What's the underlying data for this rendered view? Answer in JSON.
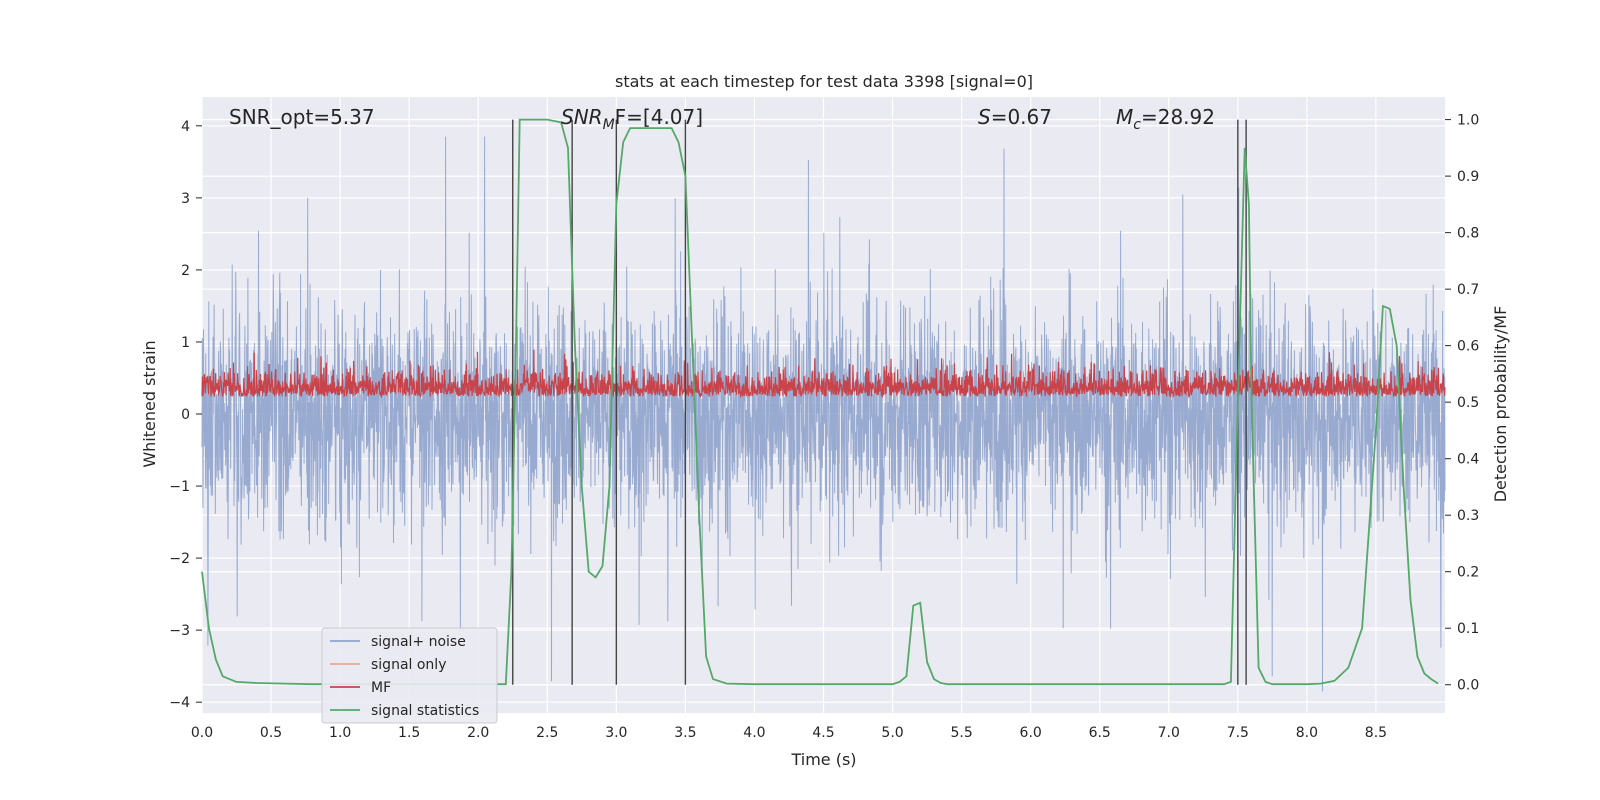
{
  "chart_data": {
    "type": "line",
    "title": "stats at each timestep for test data 3398 [signal=0]",
    "xlabel": "Time (s)",
    "ylabel_left": "Whitened strain",
    "ylabel_right": "Detection probability/MF",
    "xlim": [
      0.0,
      9.0
    ],
    "ylim_left": [
      -4.15,
      4.4
    ],
    "ylim_right": [
      -0.05,
      1.04
    ],
    "x_ticks": [
      "0.0",
      "0.5",
      "1.0",
      "1.5",
      "2.0",
      "2.5",
      "3.0",
      "3.5",
      "4.0",
      "4.5",
      "5.0",
      "5.5",
      "6.0",
      "6.5",
      "7.0",
      "7.5",
      "8.0",
      "8.5"
    ],
    "x_tick_values": [
      0.0,
      0.5,
      1.0,
      1.5,
      2.0,
      2.5,
      3.0,
      3.5,
      4.0,
      4.5,
      5.0,
      5.5,
      6.0,
      6.5,
      7.0,
      7.5,
      8.0,
      8.5
    ],
    "y_ticks_left": [
      "4",
      "3",
      "2",
      "1",
      "0",
      "−1",
      "−2",
      "−3",
      "−4"
    ],
    "y_tick_values_left": [
      4,
      3,
      2,
      1,
      0,
      -1,
      -2,
      -3,
      -4
    ],
    "y_ticks_right": [
      "1.0",
      "0.9",
      "0.8",
      "0.7",
      "0.6",
      "0.5",
      "0.4",
      "0.3",
      "0.2",
      "0.1",
      "0.0"
    ],
    "y_tick_values_right": [
      1.0,
      0.9,
      0.8,
      0.7,
      0.6,
      0.5,
      0.4,
      0.3,
      0.2,
      0.1,
      0.0
    ],
    "grid": true,
    "legend_position": "lower-left",
    "annotations": {
      "snr_opt": "SNR_opt=5.37",
      "snr_mf_main": "SNR",
      "snr_mf_sub": "M",
      "snr_mf_rest": "F=[4.07]",
      "s_italic": "S",
      "s_rest": "=0.67",
      "mc_main": "M",
      "mc_sub": "c",
      "mc_rest": "=28.92"
    },
    "series": [
      {
        "name": "signal+ noise",
        "color": "#8fa3cc",
        "description_level": "noise amplitude approx 1.6 (spikes up to ~3.8 / down to ~-3.8)"
      },
      {
        "name": "signal only",
        "color": "#e8a98f"
      },
      {
        "name": "MF",
        "color": "#c8434a",
        "baseline": 0.5,
        "range": [
          0.5,
          0.62
        ]
      },
      {
        "name": "signal statistics",
        "color": "#55a868",
        "x": [
          0.0,
          0.05,
          0.1,
          0.15,
          0.25,
          0.4,
          0.6,
          0.8,
          1.0,
          1.5,
          2.0,
          2.2,
          2.24,
          2.27,
          2.3,
          2.5,
          2.6,
          2.65,
          2.7,
          2.75,
          2.8,
          2.85,
          2.9,
          2.95,
          3.0,
          3.05,
          3.1,
          3.15,
          3.2,
          3.3,
          3.4,
          3.45,
          3.5,
          3.55,
          3.6,
          3.65,
          3.7,
          3.8,
          4.0,
          4.5,
          5.0,
          5.05,
          5.1,
          5.15,
          5.2,
          5.25,
          5.3,
          5.35,
          5.4,
          5.5,
          6.0,
          6.5,
          7.0,
          7.4,
          7.45,
          7.5,
          7.55,
          7.58,
          7.6,
          7.65,
          7.7,
          7.75,
          7.8,
          8.0,
          8.1,
          8.2,
          8.3,
          8.4,
          8.5,
          8.55,
          8.6,
          8.65,
          8.7,
          8.75,
          8.8,
          8.85,
          8.9,
          8.95
        ],
        "values": [
          0.2,
          0.1,
          0.045,
          0.015,
          0.005,
          0.003,
          0.002,
          0.001,
          0.001,
          0.001,
          0.001,
          0.001,
          0.2,
          0.55,
          1.0,
          1.0,
          0.995,
          0.95,
          0.6,
          0.35,
          0.2,
          0.19,
          0.21,
          0.35,
          0.85,
          0.96,
          0.985,
          0.985,
          0.985,
          0.985,
          0.985,
          0.96,
          0.9,
          0.6,
          0.3,
          0.05,
          0.01,
          0.002,
          0.001,
          0.001,
          0.001,
          0.005,
          0.015,
          0.14,
          0.145,
          0.04,
          0.01,
          0.003,
          0.001,
          0.001,
          0.001,
          0.001,
          0.001,
          0.001,
          0.005,
          0.5,
          0.95,
          0.85,
          0.5,
          0.03,
          0.005,
          0.001,
          0.001,
          0.001,
          0.002,
          0.007,
          0.03,
          0.1,
          0.45,
          0.67,
          0.665,
          0.6,
          0.35,
          0.15,
          0.05,
          0.02,
          0.01,
          0.002
        ]
      }
    ],
    "vertical_markers": [
      2.25,
      2.68,
      3.0,
      3.5,
      7.5,
      7.56
    ]
  }
}
